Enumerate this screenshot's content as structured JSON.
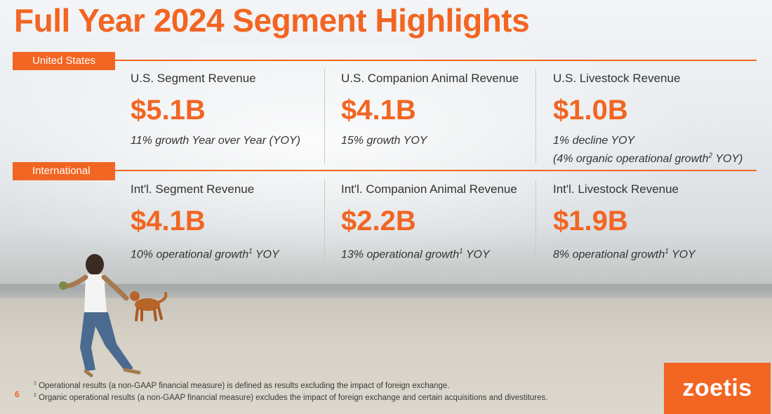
{
  "title": "Full Year 2024 Segment Highlights",
  "colors": {
    "accent": "#f26522",
    "text": "#333333"
  },
  "sections": {
    "us": {
      "tab": "United States",
      "metrics": [
        {
          "label": "U.S. Segment Revenue",
          "value": "$5.1B",
          "note": "11% growth Year over Year (YOY)"
        },
        {
          "label": "U.S. Companion Animal Revenue",
          "value": "$4.1B",
          "note": "15% growth YOY"
        },
        {
          "label": "U.S. Livestock Revenue",
          "value": "$1.0B",
          "note": "1% decline YOY",
          "note2_a": "(4% organic operational growth",
          "note2_sup": "2",
          "note2_b": " YOY)"
        }
      ]
    },
    "intl": {
      "tab": "International",
      "metrics": [
        {
          "label": "Int'l. Segment Revenue",
          "value": "$4.1B",
          "note_a": "10% operational growth",
          "note_sup": "1",
          "note_b": " YOY"
        },
        {
          "label": "Int'l. Companion Animal Revenue",
          "value": "$2.2B",
          "note_a": "13% operational growth",
          "note_sup": "1",
          "note_b": " YOY"
        },
        {
          "label": "Int'l. Livestock Revenue",
          "value": "$1.9B",
          "note_a": "8% operational growth",
          "note_sup": "1",
          "note_b": " YOY"
        }
      ]
    }
  },
  "footnotes": [
    {
      "marker": "1",
      "text": "Operational results (a non-GAAP financial measure) is defined as results excluding the impact of foreign exchange."
    },
    {
      "marker": "2",
      "text": "Organic operational results (a non-GAAP financial measure) excludes the impact of foreign exchange and certain acquisitions and divestitures."
    }
  ],
  "page_number": "6",
  "logo": "zoetis",
  "photo": {
    "icon": "beach-child-dog-photo"
  }
}
